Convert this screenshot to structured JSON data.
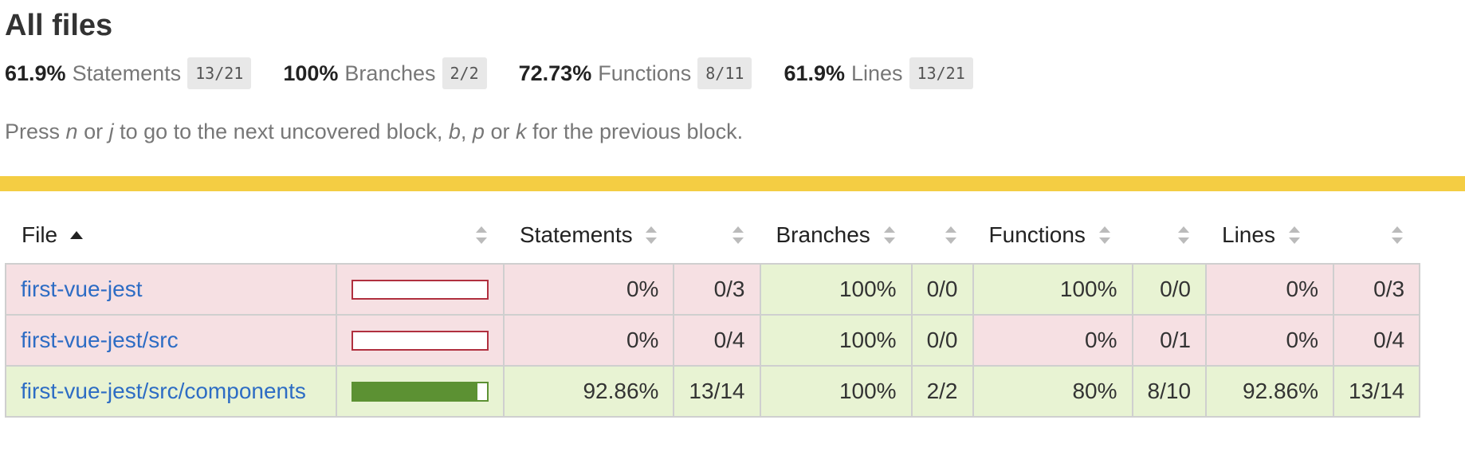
{
  "page": {
    "title": "All files",
    "hint_parts": [
      "Press ",
      "n",
      " or ",
      "j",
      " to go to the next uncovered block, ",
      "b",
      ", ",
      "p",
      " or ",
      "k",
      " for the previous block."
    ]
  },
  "summary": [
    {
      "pct": "61.9%",
      "label": "Statements",
      "fraction": "13/21"
    },
    {
      "pct": "100%",
      "label": "Branches",
      "fraction": "2/2"
    },
    {
      "pct": "72.73%",
      "label": "Functions",
      "fraction": "8/11"
    },
    {
      "pct": "61.9%",
      "label": "Lines",
      "fraction": "13/21"
    }
  ],
  "colors": {
    "status_bar": "#f4cd43",
    "low_bg": "#f6e0e3",
    "high_bg": "#e8f3d3",
    "bar_green": "#5c9133",
    "bar_red": "#b0303f",
    "link": "#2d6cc4"
  },
  "table": {
    "headers": {
      "file": "File",
      "statements": "Statements",
      "branches": "Branches",
      "functions": "Functions",
      "lines": "Lines"
    },
    "rows": [
      {
        "file": "first-vue-jest",
        "bar_fraction": 0,
        "status": "low",
        "statements_pct": "0%",
        "statements_frac": "0/3",
        "statements_status": "low",
        "branches_pct": "100%",
        "branches_frac": "0/0",
        "branches_status": "high",
        "functions_pct": "100%",
        "functions_frac": "0/0",
        "functions_status": "high",
        "lines_pct": "0%",
        "lines_frac": "0/3",
        "lines_status": "low"
      },
      {
        "file": "first-vue-jest/src",
        "bar_fraction": 0,
        "status": "low",
        "statements_pct": "0%",
        "statements_frac": "0/4",
        "statements_status": "low",
        "branches_pct": "100%",
        "branches_frac": "0/0",
        "branches_status": "high",
        "functions_pct": "0%",
        "functions_frac": "0/1",
        "functions_status": "low",
        "lines_pct": "0%",
        "lines_frac": "0/4",
        "lines_status": "low"
      },
      {
        "file": "first-vue-jest/src/components",
        "bar_fraction": 0.9286,
        "status": "high",
        "statements_pct": "92.86%",
        "statements_frac": "13/14",
        "statements_status": "high",
        "branches_pct": "100%",
        "branches_frac": "2/2",
        "branches_status": "high",
        "functions_pct": "80%",
        "functions_frac": "8/10",
        "functions_status": "high",
        "lines_pct": "92.86%",
        "lines_frac": "13/14",
        "lines_status": "high"
      }
    ]
  }
}
